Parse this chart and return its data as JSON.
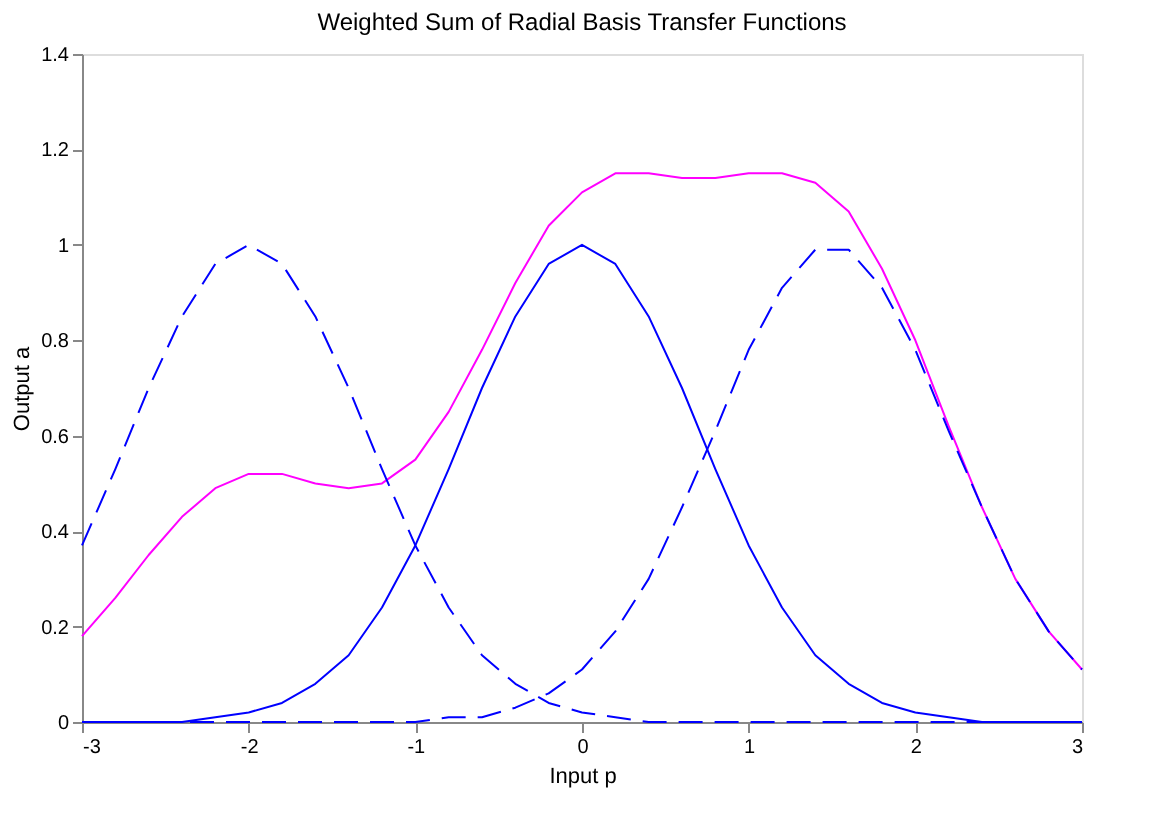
{
  "chart_data": {
    "type": "line",
    "title": "Weighted Sum of Radial Basis Transfer Functions",
    "xlabel": "Input p",
    "ylabel": "Output a",
    "x": [
      -3,
      -2.8,
      -2.6,
      -2.4,
      -2.2,
      -2,
      -1.8,
      -1.6,
      -1.4,
      -1.2,
      -1,
      -0.8,
      -0.6,
      -0.4,
      -0.2,
      0,
      0.2,
      0.4,
      0.6,
      0.8,
      1,
      1.2,
      1.4,
      1.6,
      1.8,
      2,
      2.2,
      2.4,
      2.6,
      2.8,
      3
    ],
    "series": [
      {
        "color": "#0000ff",
        "line_style": "solid",
        "values": [
          0,
          0,
          0,
          0,
          0.01,
          0.02,
          0.04,
          0.08,
          0.14,
          0.24,
          0.37,
          0.53,
          0.7,
          0.85,
          0.96,
          1,
          0.96,
          0.85,
          0.7,
          0.53,
          0.37,
          0.24,
          0.14,
          0.08,
          0.04,
          0.02,
          0.01,
          0,
          0,
          0,
          0
        ]
      },
      {
        "color": "#0000ff",
        "line_style": "dashed",
        "values": [
          0,
          0,
          0,
          0,
          0,
          0,
          0,
          0,
          0,
          0,
          0,
          0.01,
          0.01,
          0.03,
          0.06,
          0.11,
          0.19,
          0.3,
          0.45,
          0.61,
          0.78,
          0.91,
          0.99,
          0.99,
          0.91,
          0.78,
          0.61,
          0.45,
          0.3,
          0.19,
          0.11
        ]
      },
      {
        "color": "#0000ff",
        "line_style": "dashed",
        "values": [
          0.37,
          0.53,
          0.7,
          0.85,
          0.96,
          1,
          0.96,
          0.85,
          0.7,
          0.53,
          0.37,
          0.24,
          0.14,
          0.08,
          0.04,
          0.02,
          0.01,
          0,
          0,
          0,
          0,
          0,
          0,
          0,
          0,
          0,
          0,
          0,
          0,
          0,
          0
        ]
      },
      {
        "color": "#ff00ff",
        "line_style": "solid",
        "values": [
          0.18,
          0.26,
          0.35,
          0.43,
          0.49,
          0.52,
          0.52,
          0.5,
          0.49,
          0.5,
          0.55,
          0.65,
          0.78,
          0.92,
          1.04,
          1.11,
          1.15,
          1.15,
          1.14,
          1.14,
          1.15,
          1.15,
          1.13,
          1.07,
          0.95,
          0.8,
          0.62,
          0.45,
          0.3,
          0.19,
          0.11
        ]
      }
    ],
    "xlim": [
      -3,
      3
    ],
    "xticks": [
      -3,
      -2,
      -1,
      0,
      1,
      2,
      3
    ],
    "ylim": [
      0,
      1.4
    ],
    "yticks": [
      0,
      0.2,
      0.4,
      0.6,
      0.8,
      1,
      1.2,
      1.4
    ],
    "grid": false,
    "marker": "none"
  }
}
